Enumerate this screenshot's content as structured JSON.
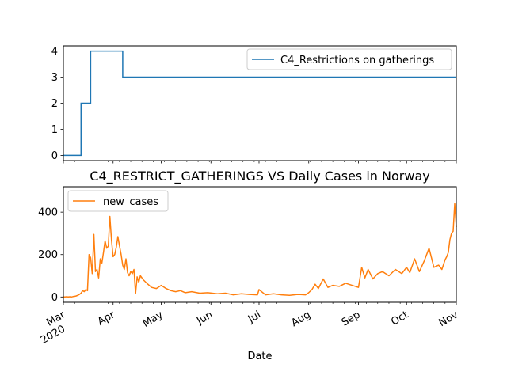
{
  "chart_data": [
    {
      "type": "line",
      "title": "",
      "xlabel": "",
      "ylabel": "",
      "legend": "top-right",
      "grid": false,
      "xlim": [
        "2020-03-01",
        "2020-11-01"
      ],
      "ylim": [
        -0.2,
        4.2
      ],
      "yticks": [
        "0",
        "1",
        "2",
        "3",
        "4"
      ],
      "series": [
        {
          "name": "C4_Restrictions on gatherings",
          "color": "#1f77b4",
          "x": [
            "2020-03-01",
            "2020-03-12",
            "2020-03-12",
            "2020-03-18",
            "2020-03-18",
            "2020-03-24",
            "2020-03-24",
            "2020-04-07",
            "2020-04-07",
            "2020-11-01"
          ],
          "y": [
            0,
            0,
            2,
            2,
            4,
            4,
            4,
            4,
            3,
            3
          ]
        }
      ]
    },
    {
      "type": "line",
      "title": "C4_RESTRICT_GATHERINGS VS Daily Cases in Norway",
      "xlabel": "Date",
      "ylabel": "",
      "legend": "top-left",
      "grid": false,
      "xlim": [
        "2020-03-01",
        "2020-11-01"
      ],
      "ylim": [
        -25,
        520
      ],
      "yticks": [
        "0",
        "200",
        "400"
      ],
      "xticks": [
        {
          "date": "2020-03-01",
          "label": "Mar",
          "sub": "2020"
        },
        {
          "date": "2020-04-01",
          "label": "Apr",
          "sub": ""
        },
        {
          "date": "2020-05-01",
          "label": "May",
          "sub": ""
        },
        {
          "date": "2020-06-01",
          "label": "Jun",
          "sub": ""
        },
        {
          "date": "2020-07-01",
          "label": "Jul",
          "sub": ""
        },
        {
          "date": "2020-08-01",
          "label": "Aug",
          "sub": ""
        },
        {
          "date": "2020-09-01",
          "label": "Sep",
          "sub": ""
        },
        {
          "date": "2020-10-01",
          "label": "Oct",
          "sub": ""
        },
        {
          "date": "2020-11-01",
          "label": "Nov",
          "sub": ""
        }
      ],
      "series": [
        {
          "name": "new_cases",
          "color": "#ff7f0e",
          "x": [
            "2020-03-01",
            "2020-03-02",
            "2020-03-03",
            "2020-03-04",
            "2020-03-05",
            "2020-03-06",
            "2020-03-07",
            "2020-03-08",
            "2020-03-09",
            "2020-03-10",
            "2020-03-11",
            "2020-03-12",
            "2020-03-13",
            "2020-03-14",
            "2020-03-15",
            "2020-03-16",
            "2020-03-17",
            "2020-03-18",
            "2020-03-19",
            "2020-03-20",
            "2020-03-21",
            "2020-03-22",
            "2020-03-23",
            "2020-03-24",
            "2020-03-25",
            "2020-03-26",
            "2020-03-27",
            "2020-03-28",
            "2020-03-29",
            "2020-03-30",
            "2020-03-31",
            "2020-04-01",
            "2020-04-02",
            "2020-04-03",
            "2020-04-04",
            "2020-04-05",
            "2020-04-06",
            "2020-04-07",
            "2020-04-08",
            "2020-04-09",
            "2020-04-10",
            "2020-04-11",
            "2020-04-12",
            "2020-04-13",
            "2020-04-14",
            "2020-04-15",
            "2020-04-16",
            "2020-04-17",
            "2020-04-18",
            "2020-04-20",
            "2020-04-22",
            "2020-04-25",
            "2020-04-28",
            "2020-05-01",
            "2020-05-04",
            "2020-05-07",
            "2020-05-10",
            "2020-05-13",
            "2020-05-16",
            "2020-05-20",
            "2020-05-25",
            "2020-05-30",
            "2020-06-05",
            "2020-06-10",
            "2020-06-15",
            "2020-06-20",
            "2020-06-25",
            "2020-06-30",
            "2020-07-01",
            "2020-07-05",
            "2020-07-10",
            "2020-07-15",
            "2020-07-20",
            "2020-07-25",
            "2020-07-30",
            "2020-08-01",
            "2020-08-03",
            "2020-08-05",
            "2020-08-07",
            "2020-08-10",
            "2020-08-13",
            "2020-08-16",
            "2020-08-20",
            "2020-08-24",
            "2020-08-28",
            "2020-09-01",
            "2020-09-03",
            "2020-09-05",
            "2020-09-07",
            "2020-09-10",
            "2020-09-13",
            "2020-09-16",
            "2020-09-20",
            "2020-09-24",
            "2020-09-28",
            "2020-10-01",
            "2020-10-03",
            "2020-10-06",
            "2020-10-09",
            "2020-10-12",
            "2020-10-15",
            "2020-10-18",
            "2020-10-21",
            "2020-10-23",
            "2020-10-25",
            "2020-10-26",
            "2020-10-27",
            "2020-10-28",
            "2020-10-29",
            "2020-10-30",
            "2020-10-31",
            "2020-11-01"
          ],
          "y": [
            0,
            0,
            1,
            0,
            1,
            0,
            2,
            3,
            5,
            8,
            12,
            18,
            30,
            25,
            35,
            30,
            200,
            185,
            110,
            295,
            120,
            130,
            90,
            180,
            160,
            210,
            265,
            230,
            240,
            380,
            270,
            190,
            200,
            235,
            285,
            240,
            200,
            150,
            130,
            180,
            115,
            100,
            120,
            110,
            130,
            15,
            95,
            70,
            100,
            80,
            65,
            45,
            40,
            55,
            40,
            30,
            25,
            30,
            20,
            25,
            18,
            20,
            15,
            18,
            10,
            15,
            12,
            10,
            35,
            10,
            15,
            10,
            8,
            12,
            10,
            20,
            35,
            60,
            40,
            85,
            45,
            55,
            50,
            65,
            55,
            45,
            140,
            90,
            130,
            85,
            110,
            120,
            100,
            130,
            110,
            140,
            115,
            180,
            120,
            170,
            230,
            140,
            150,
            130,
            175,
            190,
            210,
            270,
            300,
            310,
            440,
            330
          ]
        }
      ]
    }
  ]
}
